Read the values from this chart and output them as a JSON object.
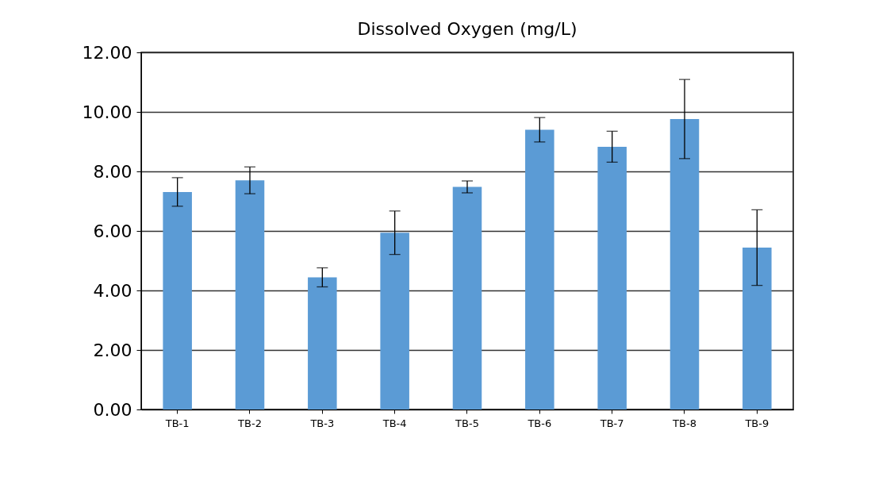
{
  "chart_data": {
    "type": "bar",
    "title": "Dissolved Oxygen (mg/L)",
    "categories": [
      "TB-1",
      "TB-2",
      "TB-3",
      "TB-4",
      "TB-5",
      "TB-6",
      "TB-7",
      "TB-8",
      "TB-9"
    ],
    "values": [
      7.31,
      7.7,
      4.44,
      5.94,
      7.48,
      9.4,
      8.83,
      9.76,
      5.44
    ],
    "errors": [
      0.48,
      0.45,
      0.32,
      0.73,
      0.2,
      0.41,
      0.52,
      1.33,
      1.27
    ],
    "color": "#5b9bd5",
    "ylim": [
      0,
      12
    ],
    "yticks": [
      {
        "value": 0,
        "label": "0.00"
      },
      {
        "value": 2,
        "label": "2.00"
      },
      {
        "value": 4,
        "label": "4.00"
      },
      {
        "value": 6,
        "label": "6.00"
      },
      {
        "value": 8,
        "label": "8.00"
      },
      {
        "value": 10,
        "label": "10.00"
      },
      {
        "value": 12,
        "label": "12.00"
      }
    ],
    "grid": "y"
  }
}
